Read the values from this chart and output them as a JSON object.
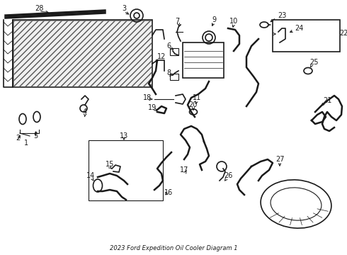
{
  "title": "2023 Ford Expedition Oil Cooler Diagram 1",
  "background_color": "#ffffff",
  "line_color": "#1a1a1a",
  "label_color": "#1a1a1a",
  "fig_width": 4.9,
  "fig_height": 3.6,
  "dpi": 100
}
